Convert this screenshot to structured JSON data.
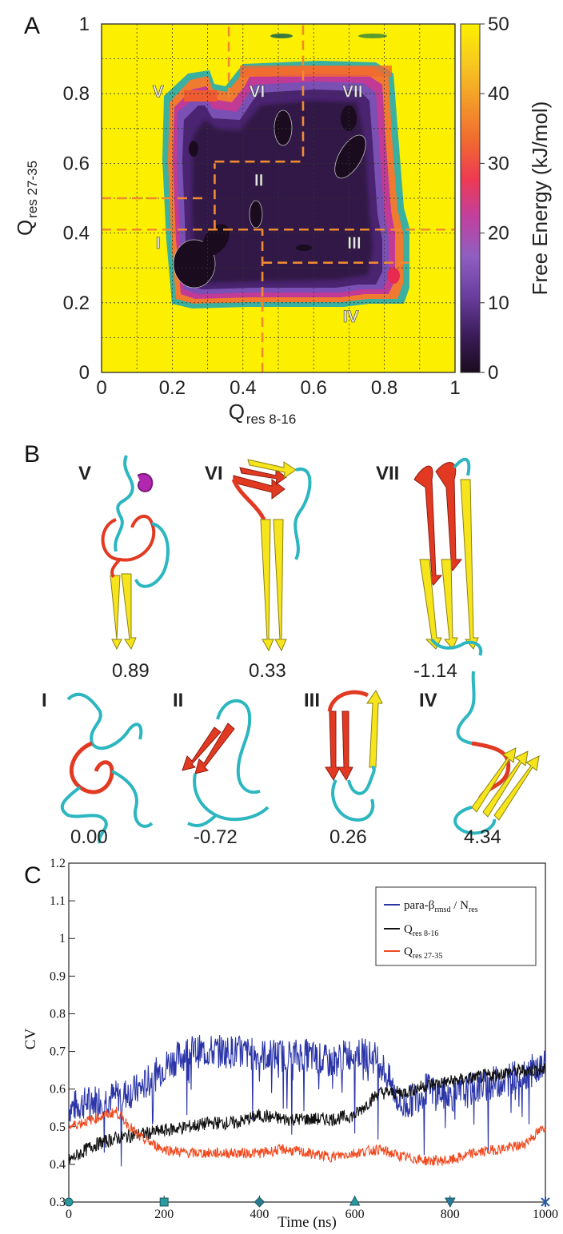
{
  "panel_labels": {
    "a": "A",
    "b": "B",
    "c": "C"
  },
  "chart_data": [
    {
      "type": "heatmap",
      "panel": "A",
      "xlabel": "Q",
      "xlabel_sub": "res 8-16",
      "ylabel": "Q",
      "ylabel_sub": "res 27-35",
      "xlim": [
        0,
        1
      ],
      "ylim": [
        0,
        1
      ],
      "xticks": [
        "0",
        "0.2",
        "0.4",
        "0.6",
        "0.8",
        "1"
      ],
      "yticks": [
        "0",
        "0.2",
        "0.4",
        "0.6",
        "0.8",
        "1"
      ],
      "grid": true,
      "colorbar": {
        "label": "Free Energy (kJ/mol)",
        "range": [
          0,
          50
        ],
        "ticks": [
          "0",
          "10",
          "20",
          "30",
          "40",
          "50"
        ],
        "colors": [
          "#1a0c1e",
          "#3d1d5c",
          "#6a3fa0",
          "#8f5fc0",
          "#c040a0",
          "#ee3a52",
          "#f06a30",
          "#f39a2a",
          "#f7c920",
          "#fcf000"
        ]
      },
      "region_labels": [
        {
          "label": "I",
          "x": 0.16,
          "y": 0.355
        },
        {
          "label": "II",
          "x": 0.445,
          "y": 0.535
        },
        {
          "label": "III",
          "x": 0.715,
          "y": 0.355
        },
        {
          "label": "IV",
          "x": 0.705,
          "y": 0.145
        },
        {
          "label": "V",
          "x": 0.16,
          "y": 0.79
        },
        {
          "label": "VI",
          "x": 0.44,
          "y": 0.79
        },
        {
          "label": "VII",
          "x": 0.71,
          "y": 0.79
        }
      ],
      "dashed_lines": {
        "vertical": [
          {
            "x": 0.36,
            "y": [
              0.79,
              1.0
            ]
          },
          {
            "x": 0.57,
            "y": [
              0.62,
              1.0
            ]
          },
          {
            "x": 0.32,
            "y": [
              0.41,
              0.6
            ]
          },
          {
            "x": 0.455,
            "y": [
              0.0,
              0.41
            ]
          }
        ],
        "horizontal": [
          {
            "y": 0.41,
            "x": [
              0.0,
              1.0
            ]
          },
          {
            "y": 0.5,
            "x": [
              0.0,
              0.3
            ]
          },
          {
            "y": 0.605,
            "x": [
              0.32,
              0.57
            ]
          },
          {
            "y": 0.315,
            "x": [
              0.455,
              0.88
            ]
          }
        ]
      },
      "minima": [
        {
          "x": 0.25,
          "y": 0.31,
          "level": 0
        },
        {
          "x": 0.27,
          "y": 0.26,
          "level": 0
        },
        {
          "x": 0.44,
          "y": 0.47,
          "level": 0
        },
        {
          "x": 0.52,
          "y": 0.7,
          "level": 0
        },
        {
          "x": 0.73,
          "y": 0.6,
          "level": 0
        },
        {
          "x": 0.66,
          "y": 0.6,
          "level": 0
        }
      ]
    },
    {
      "type": "line",
      "panel": "C",
      "xlabel": "Time (ns)",
      "ylabel": "CV",
      "xlim": [
        0,
        1000
      ],
      "ylim": [
        0.3,
        1.2
      ],
      "xticks": [
        "0",
        "200",
        "400",
        "600",
        "800",
        "1000"
      ],
      "yticks": [
        "0.3",
        "0.4",
        "0.5",
        "0.6",
        "0.7",
        "0.8",
        "0.9",
        "1",
        "1.1",
        "1.2"
      ],
      "legend_position": "top-right",
      "x": [
        0,
        50,
        100,
        150,
        200,
        250,
        300,
        350,
        400,
        450,
        500,
        550,
        600,
        650,
        700,
        750,
        800,
        850,
        900,
        950,
        1000
      ],
      "series": [
        {
          "name": "para-β",
          "name_sub": "rmsd",
          "name_suffix": " / N",
          "name_suffix_sub": "res",
          "color": "#2b35a8",
          "noise": 0.045,
          "values": [
            0.55,
            0.57,
            0.58,
            0.6,
            0.66,
            0.7,
            0.7,
            0.7,
            0.69,
            0.69,
            0.69,
            0.67,
            0.7,
            0.68,
            0.55,
            0.6,
            0.58,
            0.6,
            0.62,
            0.64,
            0.66
          ]
        },
        {
          "name": "Q",
          "name_sub": "res 8-16",
          "color": "#111111",
          "noise": 0.018,
          "values": [
            0.41,
            0.45,
            0.47,
            0.48,
            0.49,
            0.5,
            0.51,
            0.51,
            0.53,
            0.52,
            0.52,
            0.52,
            0.53,
            0.59,
            0.59,
            0.61,
            0.62,
            0.63,
            0.64,
            0.65,
            0.65
          ]
        },
        {
          "name": "Q",
          "name_sub": "res 27-35",
          "color": "#f04a20",
          "noise": 0.014,
          "values": [
            0.5,
            0.52,
            0.54,
            0.47,
            0.44,
            0.43,
            0.43,
            0.43,
            0.43,
            0.44,
            0.43,
            0.42,
            0.43,
            0.44,
            0.42,
            0.41,
            0.41,
            0.43,
            0.44,
            0.45,
            0.5
          ]
        }
      ]
    }
  ],
  "structures": {
    "top": [
      {
        "label": "V",
        "value": "0.89"
      },
      {
        "label": "VI",
        "value": "0.33"
      },
      {
        "label": "VII",
        "value": "-1.14"
      }
    ],
    "bottom": [
      {
        "label": "I",
        "value": "0.00"
      },
      {
        "label": "II",
        "value": "-0.72"
      },
      {
        "label": "III",
        "value": "0.26"
      },
      {
        "label": "IV",
        "value": "4.34"
      }
    ]
  }
}
